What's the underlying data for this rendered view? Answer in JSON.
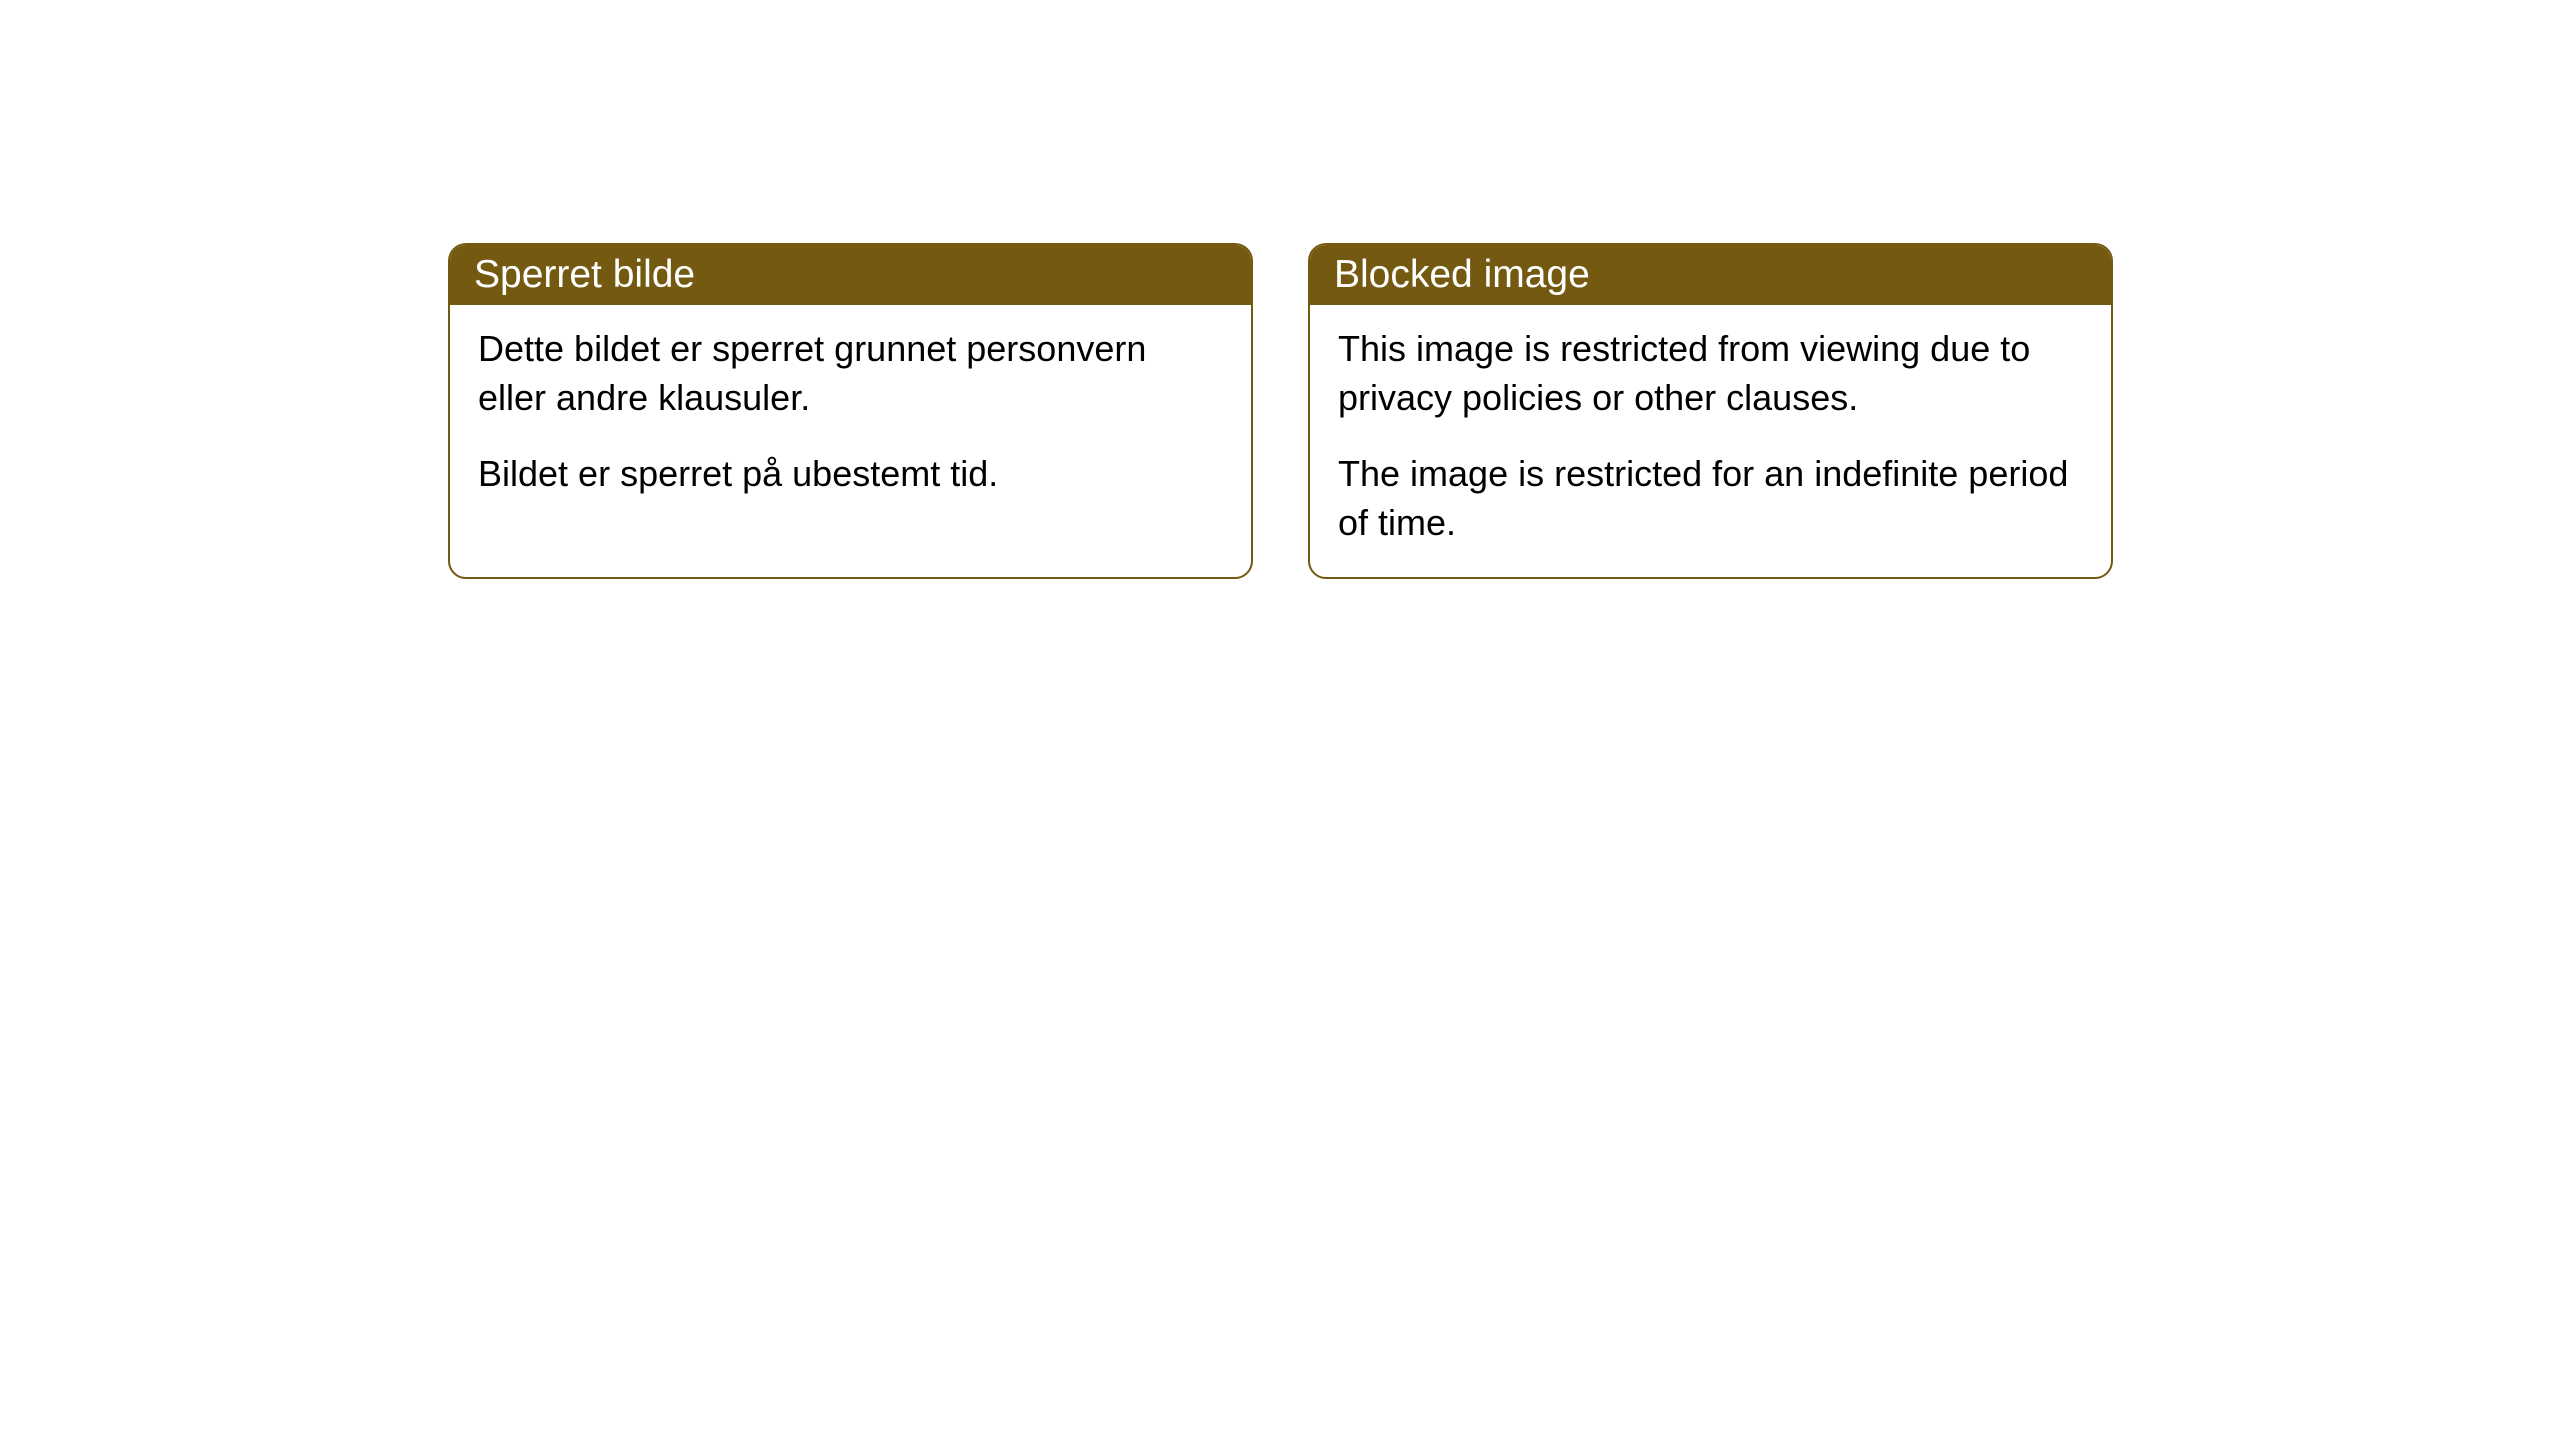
{
  "cards": [
    {
      "title": "Sperret bilde",
      "paragraph1": "Dette bildet er sperret grunnet personvern eller andre klausuler.",
      "paragraph2": "Bildet er sperret på ubestemt tid."
    },
    {
      "title": "Blocked image",
      "paragraph1": "This image is restricted from viewing due to privacy policies or other clauses.",
      "paragraph2": "The image is restricted for an indefinite period of time."
    }
  ],
  "style": {
    "header_bg_color": "#745a11",
    "header_text_color": "#ffffff",
    "border_color": "#745a11",
    "body_bg_color": "#ffffff",
    "body_text_color": "#000000",
    "page_bg_color": "#ffffff",
    "border_radius": 18,
    "header_fontsize": 39,
    "body_fontsize": 36
  }
}
